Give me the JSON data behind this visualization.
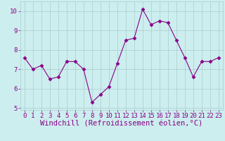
{
  "x": [
    0,
    1,
    2,
    3,
    4,
    5,
    6,
    7,
    8,
    9,
    10,
    11,
    12,
    13,
    14,
    15,
    16,
    17,
    18,
    19,
    20,
    21,
    22,
    23
  ],
  "y": [
    7.6,
    7.0,
    7.2,
    6.5,
    6.6,
    7.4,
    7.4,
    7.0,
    5.3,
    5.7,
    6.1,
    7.3,
    8.5,
    8.6,
    10.1,
    9.3,
    9.5,
    9.4,
    8.5,
    7.6,
    6.6,
    7.4,
    7.4,
    7.6
  ],
  "xlabel": "Windchill (Refroidissement éolien,°C)",
  "ylim": [
    4.9,
    10.5
  ],
  "xlim": [
    -0.5,
    23.5
  ],
  "yticks": [
    5,
    6,
    7,
    8,
    9,
    10
  ],
  "xticks": [
    0,
    1,
    2,
    3,
    4,
    5,
    6,
    7,
    8,
    9,
    10,
    11,
    12,
    13,
    14,
    15,
    16,
    17,
    18,
    19,
    20,
    21,
    22,
    23
  ],
  "line_color": "#880088",
  "marker": "D",
  "marker_size": 2.5,
  "bg_color": "#cceeee",
  "grid_color": "#aacccc",
  "label_color": "#880088",
  "tick_color": "#880088",
  "xlabel_fontsize": 7.5,
  "tick_fontsize": 6.5
}
